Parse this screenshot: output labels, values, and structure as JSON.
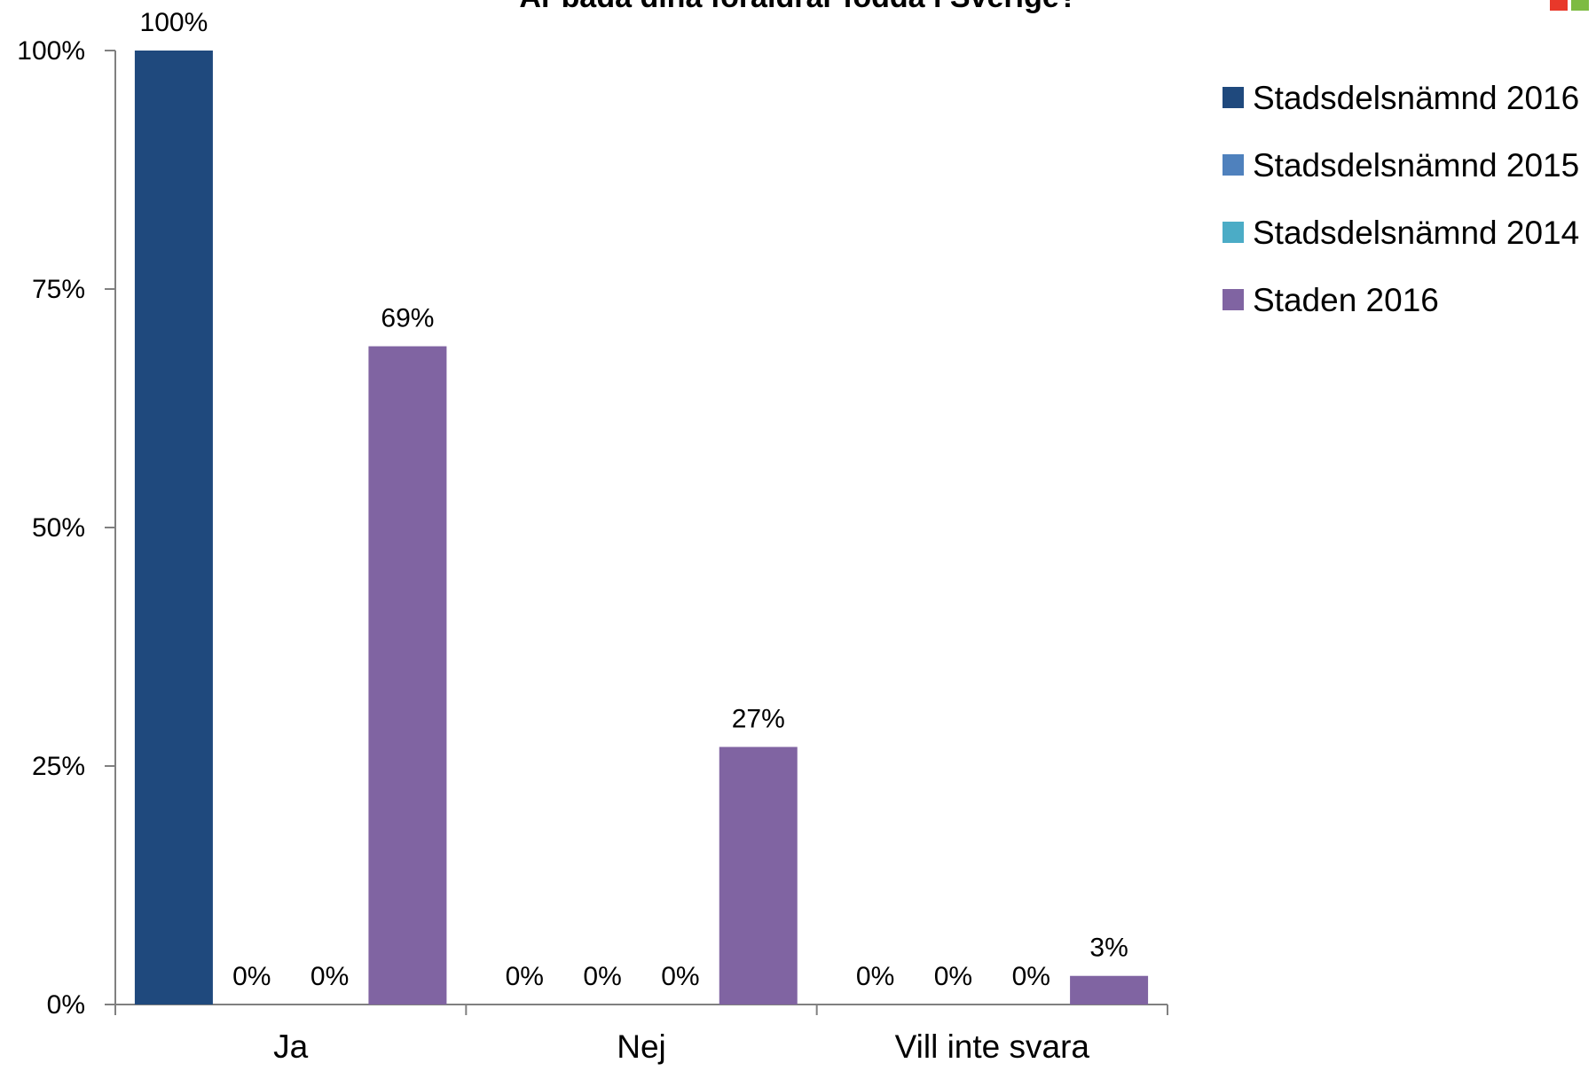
{
  "chart_data": {
    "type": "bar",
    "title": "Är båda dina föräldrar födda i Sverige?",
    "xlabel": "",
    "ylabel": "",
    "categories": [
      "Ja",
      "Nej",
      "Vill inte svara"
    ],
    "series": [
      {
        "name": "Stadsdelsnämnd 2016",
        "color": "#1F497D",
        "values": [
          100,
          0,
          0
        ],
        "labels": [
          "100%",
          "0%",
          "0%"
        ]
      },
      {
        "name": "Stadsdelsnämnd 2015",
        "color": "#4F81BD",
        "values": [
          0,
          0,
          0
        ],
        "labels": [
          "0%",
          "0%",
          "0%"
        ]
      },
      {
        "name": "Stadsdelsnämnd 2014",
        "color": "#4BACC6",
        "values": [
          0,
          0,
          0
        ],
        "labels": [
          "0%",
          "0%",
          "0%"
        ]
      },
      {
        "name": "Staden 2016",
        "color": "#8064A2",
        "values": [
          69,
          27,
          3
        ],
        "labels": [
          "69%",
          "27%",
          "3%"
        ]
      }
    ],
    "ylim": [
      0,
      100
    ],
    "yticks": [
      0,
      25,
      50,
      75,
      100
    ],
    "ytick_labels": [
      "0%",
      "25%",
      "50%",
      "75%",
      "100%"
    ],
    "grid": false,
    "legend_position": "right"
  }
}
